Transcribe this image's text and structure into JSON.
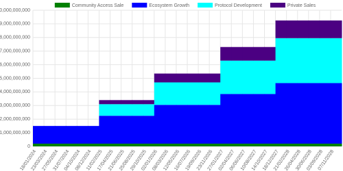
{
  "chart_data": {
    "type": "stacked-step-area",
    "categories": [
      "18/01/2024",
      "23/03/2024",
      "27/05/2024",
      "31/07/2024",
      "04/10/2024",
      "08/12/2024",
      "11/02/2025",
      "17/04/2025",
      "21/06/2025",
      "25/08/2025",
      "29/10/2025",
      "02/01/2026",
      "08/03/2026",
      "12/05/2026",
      "16/07/2026",
      "19/09/2026",
      "23/11/2026",
      "27/01/2027",
      "02/04/2027",
      "06/06/2027",
      "10/08/2027",
      "14/10/2027",
      "18/12/2027",
      "21/02/2028",
      "26/04/2028",
      "30/06/2028",
      "03/09/2028",
      "07/11/2028"
    ],
    "series": [
      {
        "name": "Community Access Sale",
        "color": "#008000",
        "values": [
          200000000,
          200000000,
          200000000,
          200000000,
          200000000,
          200000000,
          200000000,
          200000000,
          200000000,
          200000000,
          200000000,
          200000000,
          200000000,
          200000000,
          200000000,
          200000000,
          200000000,
          200000000,
          200000000,
          200000000,
          200000000,
          200000000,
          200000000,
          200000000,
          200000000,
          200000000,
          200000000,
          200000000
        ]
      },
      {
        "name": "Ecosystem Growth",
        "color": "#0000ff",
        "values": [
          1300000000,
          1300000000,
          1300000000,
          1300000000,
          1300000000,
          1300000000,
          2050000000,
          2050000000,
          2050000000,
          2050000000,
          2050000000,
          2850000000,
          2850000000,
          2850000000,
          2850000000,
          2850000000,
          2850000000,
          3650000000,
          3650000000,
          3650000000,
          3650000000,
          3650000000,
          4450000000,
          4450000000,
          4450000000,
          4450000000,
          4450000000,
          4450000000
        ]
      },
      {
        "name": "Protocol Development",
        "color": "#00ffff",
        "values": [
          0,
          0,
          0,
          0,
          0,
          0,
          850000000,
          850000000,
          850000000,
          850000000,
          850000000,
          1650000000,
          1650000000,
          1650000000,
          1650000000,
          1650000000,
          1650000000,
          2450000000,
          2450000000,
          2450000000,
          2450000000,
          2450000000,
          3300000000,
          3300000000,
          3300000000,
          3300000000,
          3300000000,
          3300000000
        ]
      },
      {
        "name": "Private Sales",
        "color": "#4b0082",
        "values": [
          0,
          0,
          0,
          0,
          0,
          0,
          300000000,
          300000000,
          300000000,
          300000000,
          300000000,
          650000000,
          650000000,
          650000000,
          650000000,
          650000000,
          650000000,
          1000000000,
          1000000000,
          1000000000,
          1000000000,
          1000000000,
          1300000000,
          1300000000,
          1300000000,
          1300000000,
          1300000000,
          1300000000
        ]
      }
    ],
    "ylim": [
      0,
      10000000000
    ],
    "yticks": [
      {
        "value": 0,
        "label": "0"
      },
      {
        "value": 1000000000,
        "label": "1,000,000,000"
      },
      {
        "value": 2000000000,
        "label": "2,000,000,000"
      },
      {
        "value": 3000000000,
        "label": "3,000,000,000"
      },
      {
        "value": 4000000000,
        "label": "4,000,000,000"
      },
      {
        "value": 5000000000,
        "label": "5,000,000,000"
      },
      {
        "value": 6000000000,
        "label": "6,000,000,000"
      },
      {
        "value": 7000000000,
        "label": "7,000,000,000"
      },
      {
        "value": 8000000000,
        "label": "8,000,000,000"
      },
      {
        "value": 9000000000,
        "label": "9,000,000,000"
      },
      {
        "value": 10000000000,
        "label": "10,000,000,000"
      }
    ],
    "grid": true,
    "legend": "top"
  }
}
